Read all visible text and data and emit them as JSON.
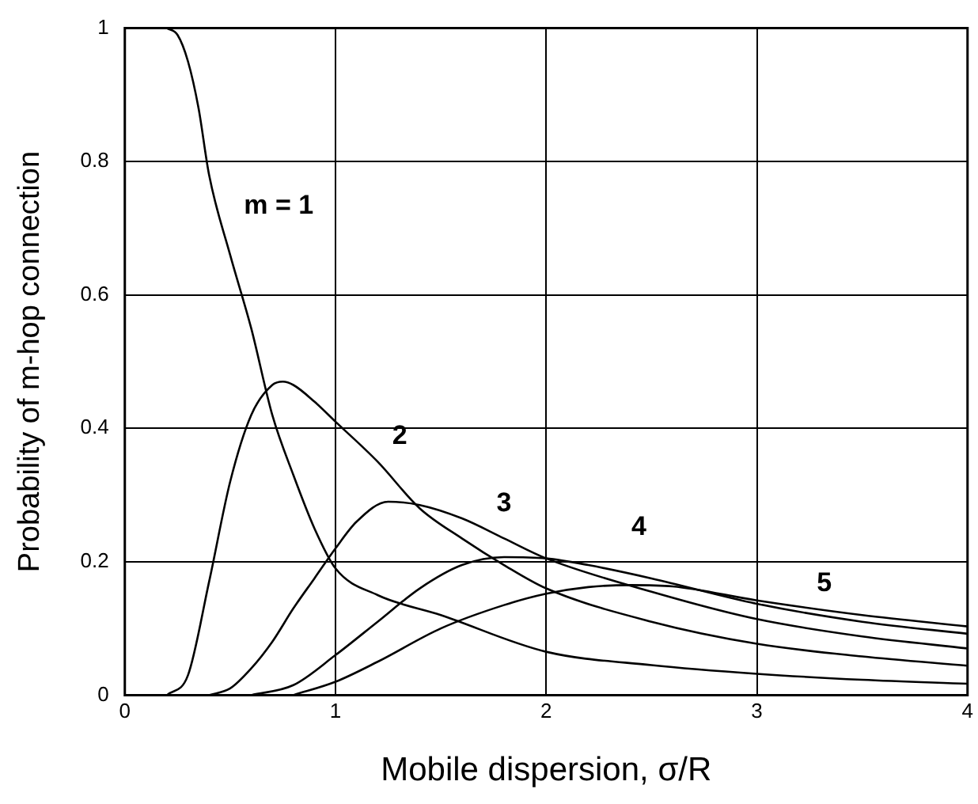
{
  "chart_data": {
    "type": "line",
    "xlabel": "Mobile dispersion, σ/R",
    "ylabel": "Probability of m-hop connection",
    "xlim": [
      0,
      4
    ],
    "ylim": [
      0,
      1
    ],
    "xticks": [
      0,
      1,
      2,
      3,
      4
    ],
    "yticks": [
      0,
      0.2,
      0.4,
      0.6,
      0.8,
      1
    ],
    "grid": true,
    "legend": false,
    "marker": "none",
    "line_style": "solid",
    "series": [
      {
        "name": "m = 1",
        "color": "#000000",
        "x": [
          0.2,
          0.25,
          0.3,
          0.35,
          0.4,
          0.5,
          0.6,
          0.7,
          0.8,
          0.9,
          1.0,
          1.2,
          1.5,
          2,
          2.5,
          3,
          3.5,
          4
        ],
        "values": [
          1,
          0.99,
          0.95,
          0.88,
          0.78,
          0.66,
          0.55,
          0.42,
          0.33,
          0.25,
          0.19,
          0.15,
          0.12,
          0.065,
          0.045,
          0.032,
          0.023,
          0.017
        ]
      },
      {
        "name": "2",
        "color": "#000000",
        "x": [
          0.2,
          0.3,
          0.4,
          0.5,
          0.6,
          0.7,
          0.75,
          0.8,
          0.9,
          1.0,
          1.2,
          1.4,
          1.6,
          1.8,
          2,
          2.5,
          3,
          3.5,
          4
        ],
        "values": [
          0,
          0.03,
          0.17,
          0.32,
          0.42,
          0.465,
          0.47,
          0.465,
          0.44,
          0.41,
          0.35,
          0.28,
          0.235,
          0.195,
          0.16,
          0.11,
          0.077,
          0.058,
          0.044
        ]
      },
      {
        "name": "3",
        "color": "#000000",
        "x": [
          0.4,
          0.5,
          0.6,
          0.7,
          0.8,
          0.9,
          1.0,
          1.1,
          1.25,
          1.4,
          1.6,
          1.8,
          2,
          2.5,
          3,
          3.5,
          4
        ],
        "values": [
          0,
          0.01,
          0.04,
          0.08,
          0.13,
          0.175,
          0.22,
          0.26,
          0.29,
          0.285,
          0.265,
          0.235,
          0.205,
          0.155,
          0.114,
          0.088,
          0.07
        ]
      },
      {
        "name": "4",
        "color": "#000000",
        "x": [
          0.6,
          0.8,
          1.0,
          1.2,
          1.4,
          1.6,
          1.8,
          2,
          2.2,
          2.5,
          3,
          3.5,
          4
        ],
        "values": [
          0,
          0.015,
          0.06,
          0.11,
          0.16,
          0.195,
          0.207,
          0.205,
          0.195,
          0.175,
          0.137,
          0.11,
          0.092
        ]
      },
      {
        "name": "5",
        "color": "#000000",
        "x": [
          0.8,
          1.0,
          1.2,
          1.5,
          1.8,
          2,
          2.2,
          2.4,
          2.6,
          3,
          3.5,
          4
        ],
        "values": [
          0,
          0.02,
          0.05,
          0.1,
          0.135,
          0.152,
          0.162,
          0.165,
          0.163,
          0.142,
          0.12,
          0.103
        ]
      }
    ]
  }
}
